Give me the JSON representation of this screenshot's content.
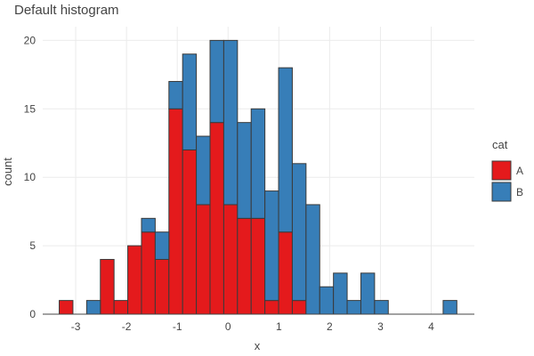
{
  "chart_data": {
    "type": "bar",
    "stacked": true,
    "title": "Default histogram",
    "xlabel": "x",
    "ylabel": "count",
    "legend_title": "cat",
    "legend_position": "right",
    "grid": true,
    "xlim": [
      -3.65,
      4.85
    ],
    "ylim": [
      0,
      21
    ],
    "x_ticks": [
      -3,
      -2,
      -1,
      0,
      1,
      2,
      3,
      4
    ],
    "y_ticks": [
      0,
      5,
      10,
      15,
      20
    ],
    "bin_width": 0.27,
    "bin_centers": [
      -3.19,
      -2.92,
      -2.65,
      -2.38,
      -2.11,
      -1.84,
      -1.57,
      -1.3,
      -1.03,
      -0.76,
      -0.49,
      -0.22,
      0.05,
      0.32,
      0.59,
      0.86,
      1.13,
      1.4,
      1.67,
      1.94,
      2.21,
      2.48,
      2.75,
      3.02,
      3.29,
      3.56,
      3.83,
      4.1,
      4.37
    ],
    "series": [
      {
        "name": "A",
        "color": "#e41a1c",
        "values": [
          1,
          0,
          0,
          4,
          1,
          5,
          6,
          4,
          15,
          12,
          8,
          14,
          8,
          7,
          7,
          1,
          6,
          1,
          0,
          0,
          0,
          0,
          0,
          0,
          0,
          0,
          0,
          0,
          0
        ]
      },
      {
        "name": "B",
        "color": "#377eb8",
        "values": [
          0,
          0,
          1,
          0,
          0,
          0,
          1,
          2,
          2,
          7,
          5,
          6,
          12,
          7,
          8,
          8,
          12,
          10,
          8,
          2,
          3,
          1,
          3,
          1,
          0,
          0,
          0,
          0,
          1
        ]
      }
    ]
  }
}
